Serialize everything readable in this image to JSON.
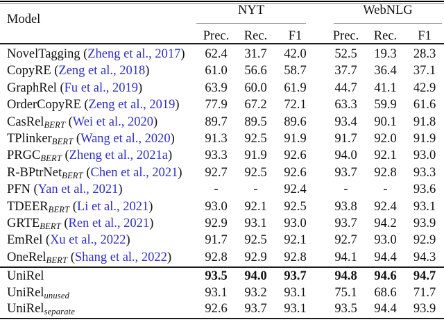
{
  "colors": {
    "citation_link": "#2e2ec4",
    "text": "#111111"
  },
  "table": {
    "header": {
      "model_label": "Model",
      "groups": [
        {
          "label": "NYT",
          "columns": [
            "Prec.",
            "Rec.",
            "F1"
          ]
        },
        {
          "label": "WebNLG",
          "columns": [
            "Prec.",
            "Rec.",
            "F1"
          ]
        }
      ]
    },
    "punct": {
      "open": "(",
      "close": ")"
    },
    "rows": [
      {
        "name": "NovelTagging",
        "subscript": "",
        "citation": "Zheng et al., 2017",
        "values": [
          "62.4",
          "31.7",
          "42.0",
          "52.5",
          "19.3",
          "28.3"
        ],
        "bold": false
      },
      {
        "name": "CopyRE",
        "subscript": "",
        "citation": "Zeng et al., 2018",
        "values": [
          "61.0",
          "56.6",
          "58.7",
          "37.7",
          "36.4",
          "37.1"
        ],
        "bold": false
      },
      {
        "name": "GraphRel",
        "subscript": "",
        "citation": "Fu et al., 2019",
        "values": [
          "63.9",
          "60.0",
          "61.9",
          "44.7",
          "41.1",
          "42.9"
        ],
        "bold": false
      },
      {
        "name": "OrderCopyRE",
        "subscript": "",
        "citation": "Zeng et al., 2019",
        "values": [
          "77.9",
          "67.2",
          "72.1",
          "63.3",
          "59.9",
          "61.6"
        ],
        "bold": false
      },
      {
        "name": "CasRel",
        "subscript": "BERT",
        "citation": "Wei et al., 2020",
        "values": [
          "89.7",
          "89.5",
          "89.6",
          "93.4",
          "90.1",
          "91.8"
        ],
        "bold": false
      },
      {
        "name": "TPlinker",
        "subscript": "BERT",
        "citation": "Wang et al., 2020",
        "values": [
          "91.3",
          "92.5",
          "91.9",
          "91.7",
          "92.0",
          "91.9"
        ],
        "bold": false
      },
      {
        "name": "PRGC",
        "subscript": "BERT",
        "citation": "Zheng et al., 2021a",
        "values": [
          "93.3",
          "91.9",
          "92.6",
          "94.0",
          "92.1",
          "93.0"
        ],
        "bold": false
      },
      {
        "name": "R-BPtrNet",
        "subscript": "BERT",
        "citation": "Chen et al., 2021",
        "values": [
          "92.7",
          "92.5",
          "92.6",
          "93.7",
          "92.8",
          "93.3"
        ],
        "bold": false
      },
      {
        "name": "PFN",
        "subscript": "",
        "citation": "Yan et al., 2021",
        "values": [
          "-",
          "-",
          "92.4",
          "-",
          "-",
          "93.6"
        ],
        "bold": false
      },
      {
        "name": "TDEER",
        "subscript": "BERT",
        "citation": "Li et al., 2021",
        "values": [
          "93.0",
          "92.1",
          "92.5",
          "93.8",
          "92.4",
          "93.1"
        ],
        "bold": false
      },
      {
        "name": "GRTE",
        "subscript": "BERT",
        "citation": "Ren et al., 2021",
        "values": [
          "92.9",
          "93.1",
          "93.0",
          "93.7",
          "94.2",
          "93.9"
        ],
        "bold": false
      },
      {
        "name": "EmRel",
        "subscript": "",
        "citation": "Xu et al., 2022",
        "values": [
          "91.7",
          "92.5",
          "92.1",
          "92.7",
          "93.0",
          "92.9"
        ],
        "bold": false
      },
      {
        "name": "OneRel",
        "subscript": "BERT",
        "citation": "Shang et al., 2022",
        "values": [
          "92.8",
          "92.9",
          "92.8",
          "94.1",
          "94.4",
          "94.3"
        ],
        "bold": false
      }
    ],
    "unirel_rows": [
      {
        "name": "UniRel",
        "subscript": "",
        "citation": "",
        "values": [
          "93.5",
          "94.0",
          "93.7",
          "94.8",
          "94.6",
          "94.7"
        ],
        "bold": true
      },
      {
        "name": "UniRel",
        "subscript": "unused",
        "citation": "",
        "values": [
          "93.1",
          "93.2",
          "93.1",
          "75.1",
          "68.6",
          "71.7"
        ],
        "bold": false
      },
      {
        "name": "UniRel",
        "subscript": "separate",
        "citation": "",
        "values": [
          "92.6",
          "93.7",
          "93.1",
          "93.5",
          "94.4",
          "93.9"
        ],
        "bold": false
      }
    ]
  }
}
